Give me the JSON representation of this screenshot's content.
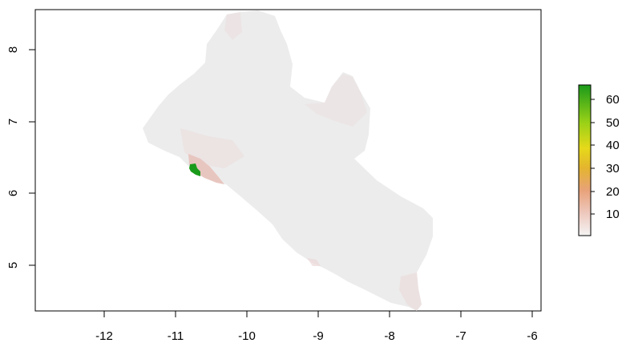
{
  "map": {
    "x_axis": {
      "ticks": [
        -12,
        -11,
        -10,
        -9,
        -8,
        -7,
        -6
      ],
      "labels": [
        "-12",
        "-11",
        "-10",
        "-9",
        "-8",
        "-7",
        "-6"
      ],
      "range": [
        -12.95,
        -5.95
      ]
    },
    "y_axis": {
      "ticks": [
        5,
        6,
        7,
        8
      ],
      "labels": [
        "5",
        "6",
        "7",
        "8"
      ],
      "range": [
        4.35,
        8.55
      ]
    },
    "colors": {
      "land": "#ededed",
      "low": "#f0d9d4",
      "high": "#1a9a1a",
      "border": "#000000"
    }
  },
  "legend": {
    "ticks": [
      10,
      20,
      30,
      40,
      50,
      60
    ],
    "labels": [
      "10",
      "20",
      "30",
      "40",
      "50",
      "60"
    ],
    "range": [
      0,
      66
    ],
    "gradient": [
      "#f2f2f2",
      "#edc2b4",
      "#e8a27a",
      "#e5b23a",
      "#e8d61a",
      "#bcd81a",
      "#7ccf10",
      "#1a9a1a"
    ]
  }
}
